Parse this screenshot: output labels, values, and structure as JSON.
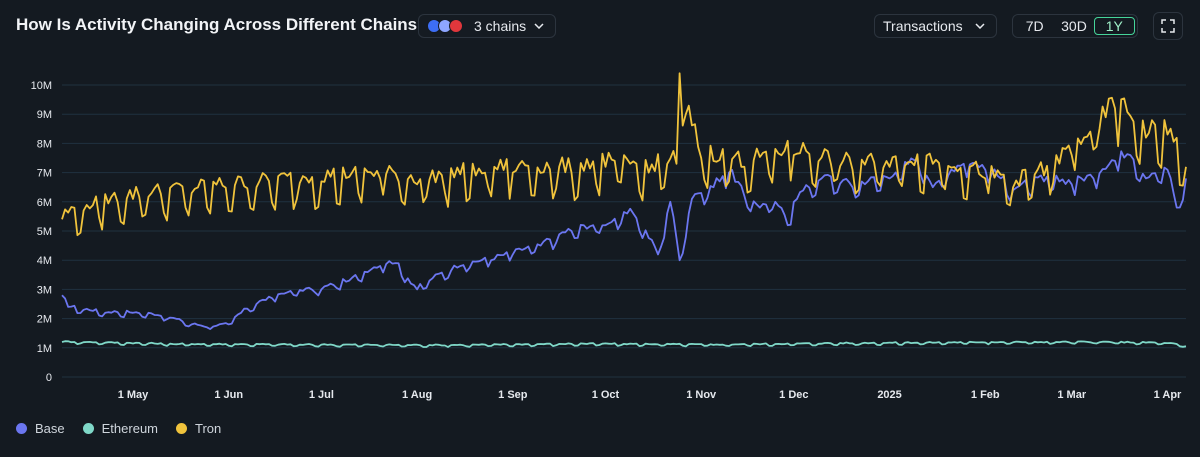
{
  "header": {
    "title": "How Is Activity Changing Across Different Chains?",
    "chain_select_label": "3 chains",
    "metric_select_label": "Transactions",
    "ranges": [
      "7D",
      "30D",
      "1Y"
    ],
    "active_range": "1Y"
  },
  "colors": {
    "background": "#141a21",
    "grid": "#1f3140",
    "base": "#6b76f0",
    "ethereum": "#7fd8c8",
    "tron": "#f0c33c"
  },
  "chart_data": {
    "type": "line",
    "y_tick_labels": [
      "0",
      "1M",
      "2M",
      "3M",
      "4M",
      "5M",
      "6M",
      "7M",
      "8M",
      "9M",
      "10M"
    ],
    "ylim": [
      0,
      10000000
    ],
    "x_tick_labels": [
      "1 May",
      "1 Jun",
      "1 Jul",
      "1 Aug",
      "1 Sep",
      "1 Oct",
      "1 Nov",
      "1 Dec",
      "2025",
      "1 Feb",
      "1 Mar",
      "1 Apr"
    ],
    "x_range": [
      "2024-04-08",
      "2025-04-07"
    ],
    "grid": true,
    "legend_position": "bottom-left",
    "series": [
      {
        "name": "Base",
        "color_key": "base",
        "x": [
          "2024-04-08",
          "2024-04-10",
          "2024-04-15",
          "2024-04-22",
          "2024-05-01",
          "2024-05-10",
          "2024-05-20",
          "2024-05-25",
          "2024-06-01",
          "2024-06-05",
          "2024-06-10",
          "2024-06-15",
          "2024-06-20",
          "2024-07-01",
          "2024-07-10",
          "2024-07-20",
          "2024-07-25",
          "2024-07-30",
          "2024-08-01",
          "2024-08-05",
          "2024-08-15",
          "2024-08-25",
          "2024-09-01",
          "2024-09-10",
          "2024-09-20",
          "2024-10-01",
          "2024-10-10",
          "2024-10-18",
          "2024-10-22",
          "2024-10-25",
          "2024-10-29",
          "2024-11-01",
          "2024-11-05",
          "2024-11-10",
          "2024-11-15",
          "2024-11-20",
          "2024-11-25",
          "2024-11-29",
          "2024-12-01",
          "2024-12-10",
          "2024-12-20",
          "2025-01-01",
          "2025-01-10",
          "2025-01-15",
          "2025-01-20",
          "2025-01-25",
          "2025-02-01",
          "2025-02-10",
          "2025-02-20",
          "2025-03-01",
          "2025-03-08",
          "2025-03-15",
          "2025-03-20",
          "2025-03-25",
          "2025-04-01",
          "2025-04-04",
          "2025-04-07"
        ],
        "values": [
          2800000,
          2400000,
          2300000,
          2200000,
          2200000,
          2100000,
          1800000,
          1700000,
          1800000,
          2200000,
          2500000,
          2700000,
          2900000,
          3000000,
          3300000,
          3800000,
          3900000,
          3200000,
          3000000,
          3300000,
          3800000,
          4000000,
          4200000,
          4500000,
          5000000,
          5200000,
          5600000,
          4200000,
          6000000,
          4000000,
          6100000,
          6300000,
          6500000,
          7000000,
          6200000,
          5800000,
          6000000,
          5200000,
          6000000,
          6800000,
          6500000,
          6800000,
          7400000,
          6500000,
          6900000,
          7300000,
          7100000,
          6400000,
          6700000,
          6600000,
          6800000,
          7400000,
          7600000,
          6800000,
          7100000,
          5800000,
          6800000
        ]
      },
      {
        "name": "Ethereum",
        "color_key": "ethereum",
        "x": [
          "2024-04-08",
          "2024-05-15",
          "2024-06-25",
          "2024-08-10",
          "2024-09-25",
          "2024-11-05",
          "2024-12-20",
          "2025-02-01",
          "2025-03-10",
          "2025-04-01",
          "2025-04-07"
        ],
        "values": [
          1200000,
          1120000,
          1100000,
          1080000,
          1130000,
          1100000,
          1150000,
          1180000,
          1190000,
          1160000,
          1050000
        ]
      },
      {
        "name": "Tron",
        "color_key": "tron",
        "x": [
          "2024-04-08",
          "2024-04-15",
          "2024-05-01",
          "2024-05-20",
          "2024-06-10",
          "2024-07-01",
          "2024-07-20",
          "2024-08-01",
          "2024-08-20",
          "2024-09-01",
          "2024-09-20",
          "2024-10-01",
          "2024-10-15",
          "2024-10-24",
          "2024-10-25",
          "2024-10-27",
          "2024-11-01",
          "2024-11-15",
          "2024-12-01",
          "2024-12-20",
          "2025-01-01",
          "2025-01-15",
          "2025-02-01",
          "2025-02-10",
          "2025-02-20",
          "2025-03-01",
          "2025-03-10",
          "2025-03-15",
          "2025-03-25",
          "2025-04-01",
          "2025-04-07"
        ],
        "values": [
          5400000,
          5700000,
          6100000,
          6300000,
          6500000,
          6700000,
          6800000,
          6600000,
          6900000,
          7000000,
          7000000,
          7200000,
          7000000,
          7300000,
          10400000,
          9000000,
          7500000,
          7200000,
          7600000,
          7100000,
          7200000,
          7300000,
          6800000,
          6500000,
          6900000,
          7600000,
          8500000,
          9200000,
          8200000,
          8300000,
          7200000
        ]
      }
    ]
  },
  "legend": [
    {
      "label": "Base",
      "color_key": "base"
    },
    {
      "label": "Ethereum",
      "color_key": "ethereum"
    },
    {
      "label": "Tron",
      "color_key": "tron"
    }
  ]
}
